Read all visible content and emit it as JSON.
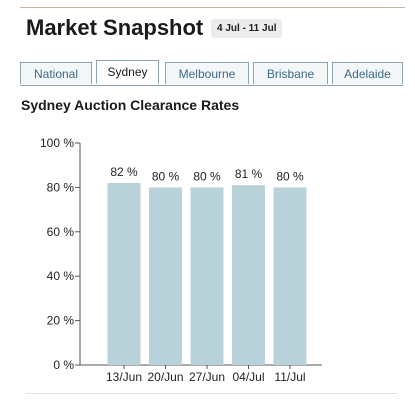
{
  "header": {
    "title": "Market Snapshot",
    "date_range": "4 Jul - 11 Jul"
  },
  "tabs": [
    {
      "label": "National",
      "active": false
    },
    {
      "label": "Sydney",
      "active": true
    },
    {
      "label": "Melbourne",
      "active": false
    },
    {
      "label": "Brisbane",
      "active": false
    },
    {
      "label": "Adelaide",
      "active": false
    }
  ],
  "colors": {
    "bar": "#b9d1d9",
    "axis": "#555555",
    "tab_text": "#3d6a86"
  },
  "chart_data": {
    "type": "bar",
    "title": "Sydney Auction Clearance Rates",
    "categories": [
      "13/Jun",
      "20/Jun",
      "27/Jun",
      "04/Jul",
      "11/Jul"
    ],
    "values": [
      82,
      80,
      80,
      81,
      80
    ],
    "value_labels": [
      "82 %",
      "80 %",
      "80 %",
      "81 %",
      "80 %"
    ],
    "y_ticks": [
      "0 %",
      "20 %",
      "40 %",
      "60 %",
      "80 %",
      "100 %"
    ],
    "ylim": [
      0,
      100
    ],
    "xlabel": "",
    "ylabel": "",
    "grid": false,
    "legend": "none"
  }
}
